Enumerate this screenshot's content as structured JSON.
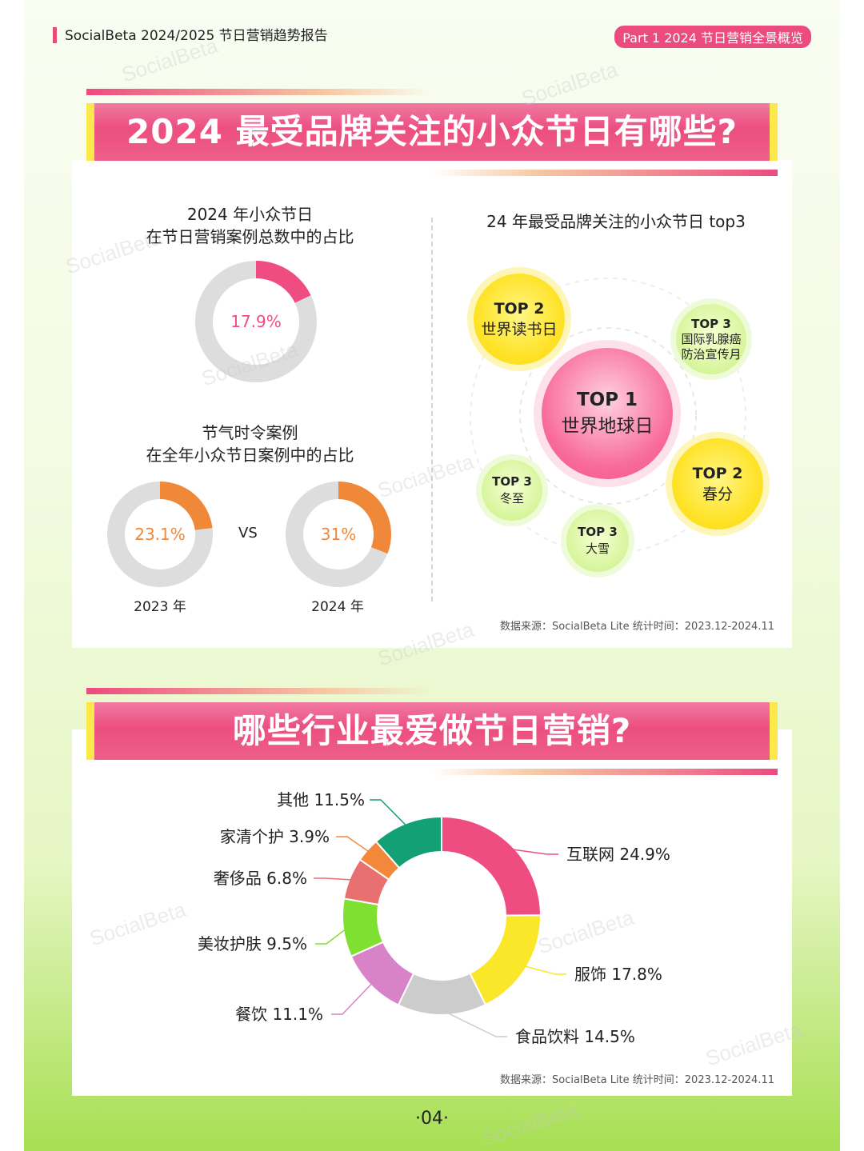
{
  "header": {
    "title": "SocialBeta 2024/2025 节日营销趋势报告",
    "tag": "Part 1 2024 节日营销全景概览"
  },
  "section1": {
    "banner": "2024 最受品牌关注的小众节日有哪些?",
    "left_title_1": "2024 年小众节日",
    "left_title_2": "在节日营销案例总数中的占比",
    "left_title_3": "节气时令案例",
    "left_title_4": "在全年小众节日案例中的占比",
    "vs": "VS",
    "right_title": "24 年最受品牌关注的小众节日 top3",
    "bubbles": [
      {
        "rank": "TOP 1",
        "name": "世界地球日"
      },
      {
        "rank": "TOP 2",
        "name": "世界读书日"
      },
      {
        "rank": "TOP 2",
        "name": "春分"
      },
      {
        "rank": "TOP 3",
        "name": "国际乳腺癌防治宣传月",
        "name_line1": "国际乳腺癌",
        "name_line2": "防治宣传月"
      },
      {
        "rank": "TOP 3",
        "name": "冬至"
      },
      {
        "rank": "TOP 3",
        "name": "大雪"
      }
    ],
    "source": "数据来源：SocialBeta Lite 统计时间：2023.12-2024.11"
  },
  "section2": {
    "banner": "哪些行业最爱做节日营销?",
    "source": "数据来源：SocialBeta Lite 统计时间：2023.12-2024.11"
  },
  "page_number": "·04·",
  "watermark": "SocialBeta",
  "chart_data": [
    {
      "type": "pie",
      "title": "",
      "values": [
        17.9,
        82.1
      ],
      "value_label": "17.9%",
      "colors": [
        "#ef4d82",
        "#dddddd"
      ]
    },
    {
      "type": "pie",
      "title": "",
      "categories": [
        "2023 年",
        "2024 年"
      ],
      "series": [
        {
          "name": "2023 年",
          "values": [
            23.1,
            76.9
          ],
          "value_label": "23.1%"
        },
        {
          "name": "2024 年",
          "values": [
            31,
            69
          ],
          "value_label": "31%"
        }
      ],
      "colors": [
        "#f0883a",
        "#dddddd"
      ]
    },
    {
      "type": "pie",
      "title": "",
      "categories": [
        "互联网",
        "服饰",
        "食品饮料",
        "餐饮",
        "美妆护肤",
        "奢侈品",
        "家清个护",
        "其他"
      ],
      "values": [
        24.9,
        17.8,
        14.5,
        11.1,
        9.5,
        6.8,
        3.9,
        11.5
      ],
      "labels": [
        "互联网 24.9%",
        "服饰 17.8%",
        "食品饮料 14.5%",
        "餐饮 11.1%",
        "美妆护肤 9.5%",
        "奢侈品 6.8%",
        "家清个护 3.9%",
        "其他 11.5%"
      ],
      "colors": [
        "#ef4d82",
        "#fbe72a",
        "#cccccc",
        "#d882c8",
        "#7fe031",
        "#e87070",
        "#f3883a",
        "#12a074"
      ]
    }
  ]
}
